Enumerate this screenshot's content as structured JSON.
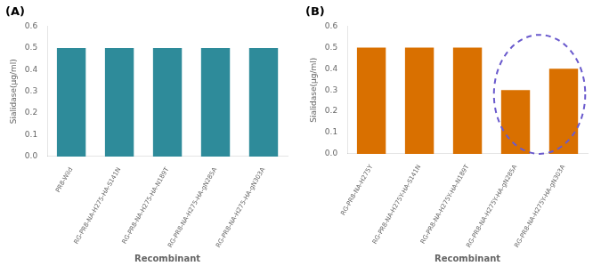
{
  "chart_data": [
    {
      "type": "bar",
      "title": "(A)",
      "categories": [
        "PR8-Wild",
        "RG-PR8-NA-H275-HA-S141N",
        "RG-PR8-NA-H275-HA-N189T",
        "RG-PR8-NA-H275-HA-gN285A",
        "RG-PR8-NA-H275-HA-gN303A"
      ],
      "values": [
        0.5,
        0.5,
        0.5,
        0.5,
        0.5
      ],
      "color": "#2e8b9a",
      "ylim": [
        0,
        0.6
      ],
      "yticks": [
        {
          "value": 0,
          "label": "0.0"
        },
        0.1,
        0.2,
        0.3,
        0.4,
        0.5,
        0.6
      ],
      "ylabel": "Sialidase(μg/ml)",
      "xlabel": "Recombinant",
      "grid": false
    },
    {
      "type": "bar",
      "title": "(B)",
      "categories": [
        "RG-PR8-NA-H275Y",
        "RG-PR8-NA-H275Y-HA-S141N",
        "RG-PR8-NA-H275Y-HA-N189T",
        "RG-PR8-NA-H275Y-HA-gN285A",
        "RG-PR8-NA-H275Y-HA-gN303A"
      ],
      "values": [
        0.5,
        0.5,
        0.5,
        0.3,
        0.4
      ],
      "color": "#d97000",
      "ylim": [
        0,
        0.6
      ],
      "yticks": [
        {
          "value": 0,
          "label": "0.0"
        },
        0.1,
        0.2,
        0.3,
        0.4,
        0.5,
        0.6
      ],
      "ylabel": "Sialidase(μg/ml)",
      "xlabel": "Recombinant",
      "grid": false,
      "annotations": [
        {
          "shape": "ellipse",
          "x": 3.5,
          "y": 0.28,
          "width": 1.9,
          "height": 0.56,
          "color": "#6a5acd"
        }
      ]
    }
  ]
}
